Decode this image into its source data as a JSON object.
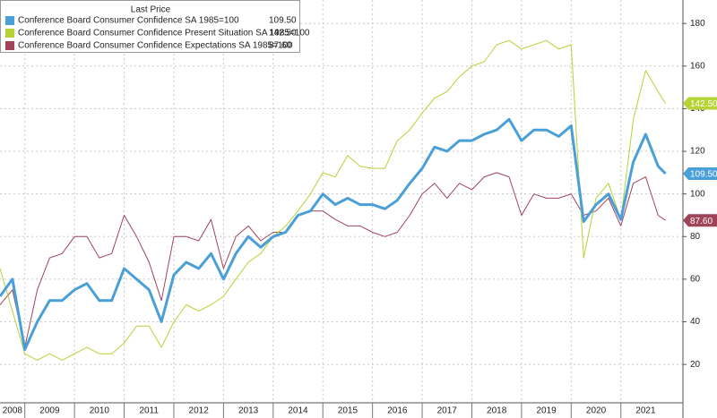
{
  "chart_data": {
    "type": "line",
    "legend_title": "Last Price",
    "x": [
      2008.5,
      2008.75,
      2009.0,
      2009.25,
      2009.5,
      2009.75,
      2010.0,
      2010.25,
      2010.5,
      2010.75,
      2011.0,
      2011.25,
      2011.5,
      2011.75,
      2012.0,
      2012.25,
      2012.5,
      2012.75,
      2013.0,
      2013.25,
      2013.5,
      2013.75,
      2014.0,
      2014.25,
      2014.5,
      2014.75,
      2015.0,
      2015.25,
      2015.5,
      2015.75,
      2016.0,
      2016.25,
      2016.5,
      2016.75,
      2017.0,
      2017.25,
      2017.5,
      2017.75,
      2018.0,
      2018.25,
      2018.5,
      2018.75,
      2019.0,
      2019.25,
      2019.5,
      2019.75,
      2020.0,
      2020.25,
      2020.5,
      2020.75,
      2021.0,
      2021.25,
      2021.5,
      2021.75,
      2021.9
    ],
    "series": [
      {
        "name": "Conference Board Consumer Confidence SA 1985=100",
        "color": "#4a9fd8",
        "width": 3,
        "last_label": "109.50",
        "values": [
          52,
          60,
          27,
          40,
          50,
          50,
          55,
          58,
          50,
          50,
          65,
          60,
          55,
          40,
          62,
          68,
          65,
          72,
          60,
          72,
          80,
          75,
          80,
          82,
          90,
          92,
          100,
          95,
          98,
          95,
          95,
          93,
          97,
          105,
          112,
          122,
          120,
          125,
          125,
          128,
          130,
          135,
          125,
          130,
          130,
          127,
          132,
          87,
          95,
          100,
          88,
          115,
          128,
          113,
          109.5
        ]
      },
      {
        "name": "Conference Board Consumer Confidence Present Situation SA 1985=100",
        "color": "#b5d334",
        "width": 1,
        "last_label": "142.50",
        "values": [
          65,
          45,
          25,
          22,
          25,
          22,
          25,
          28,
          25,
          25,
          30,
          38,
          38,
          28,
          40,
          48,
          45,
          48,
          52,
          60,
          68,
          72,
          80,
          85,
          92,
          100,
          110,
          108,
          118,
          113,
          112,
          112,
          125,
          130,
          138,
          145,
          148,
          155,
          160,
          162,
          170,
          172,
          168,
          170,
          172,
          168,
          170,
          70,
          98,
          105,
          88,
          135,
          158,
          148,
          142.5
        ]
      },
      {
        "name": "Conference Board Consumer Confidence Expectations SA 1985=100",
        "color": "#a0445a",
        "width": 1,
        "last_label": "87.60",
        "values": [
          48,
          55,
          28,
          55,
          70,
          72,
          80,
          80,
          70,
          72,
          90,
          80,
          68,
          50,
          80,
          80,
          78,
          88,
          65,
          80,
          85,
          78,
          82,
          82,
          90,
          92,
          92,
          88,
          85,
          85,
          82,
          80,
          82,
          90,
          100,
          105,
          98,
          105,
          102,
          108,
          110,
          108,
          90,
          100,
          98,
          98,
          100,
          90,
          92,
          98,
          85,
          105,
          108,
          90,
          87.6
        ]
      }
    ],
    "xlim": [
      2008.5,
      2022.25
    ],
    "xticks": [
      2008,
      2009,
      2010,
      2011,
      2012,
      2013,
      2014,
      2015,
      2016,
      2017,
      2018,
      2019,
      2020,
      2021
    ],
    "ylim": [
      2,
      191
    ],
    "yticks": [
      20,
      40,
      60,
      80,
      100,
      120,
      140,
      160,
      180
    ],
    "grid": true
  }
}
